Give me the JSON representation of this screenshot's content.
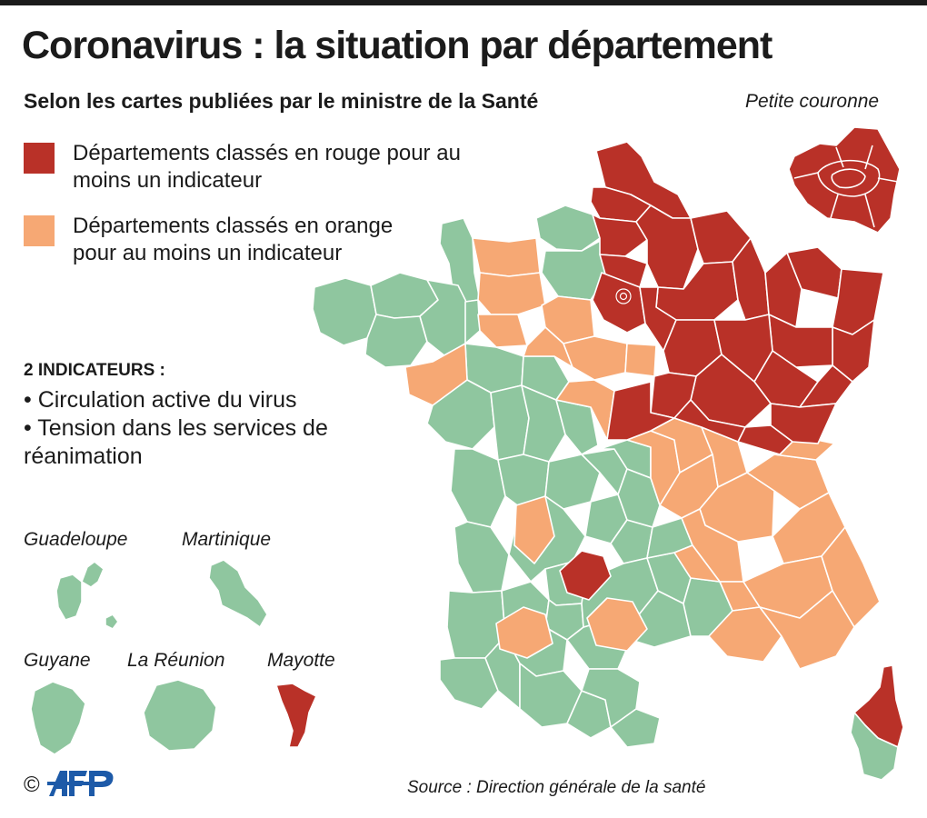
{
  "title": "Coronavirus : la situation par département",
  "subtitle": "Selon les cartes publiées par le ministre de la Santé",
  "inset_label": "Petite couronne",
  "legend": {
    "red": {
      "label": "Départements classés en rouge pour au moins un indicateur",
      "color": "#b93128"
    },
    "orange": {
      "label": "Départements classés en orange pour au moins un indicateur",
      "color": "#f6a874"
    },
    "green": {
      "color": "#8fc69f"
    }
  },
  "indicators": {
    "title": "2 INDICATEURS :",
    "items": [
      "• Circulation active du virus",
      "• Tension dans les services de réanimation"
    ]
  },
  "overseas": {
    "guadeloupe": {
      "label": "Guadeloupe",
      "status": "green"
    },
    "martinique": {
      "label": "Martinique",
      "status": "green"
    },
    "guyane": {
      "label": "Guyane",
      "status": "green"
    },
    "reunion": {
      "label": "La Réunion",
      "status": "green"
    },
    "mayotte": {
      "label": "Mayotte",
      "status": "red"
    }
  },
  "source": "Source : Direction générale de la santé",
  "credit": {
    "copyright": "©",
    "agency": "AFP"
  }
}
